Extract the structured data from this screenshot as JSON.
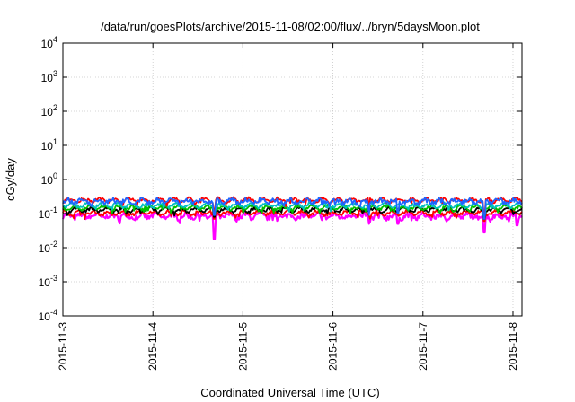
{
  "chart_data": {
    "type": "line",
    "title": "/data/run/goesPlots/archive/2015-11-08/02:00/flux/../bryn/5daysMoon.plot",
    "xlabel": "Coordinated Universal Time (UTC)",
    "ylabel": "cGy/day",
    "yscale": "log",
    "ylim_exponents": [
      -4,
      4
    ],
    "y_tick_labels": [
      {
        "base": "10",
        "exp": "4"
      },
      {
        "base": "10",
        "exp": "3"
      },
      {
        "base": "10",
        "exp": "2"
      },
      {
        "base": "10",
        "exp": "1"
      },
      {
        "base": "10",
        "exp": "0"
      },
      {
        "base": "10",
        "exp": "-1"
      },
      {
        "base": "10",
        "exp": "-2"
      },
      {
        "base": "10",
        "exp": "-3"
      },
      {
        "base": "10",
        "exp": "-4"
      }
    ],
    "xlim_days": [
      0,
      5.1
    ],
    "x_ticks": [
      {
        "day": 0,
        "label": "2015-11-3"
      },
      {
        "day": 1,
        "label": "2015-11-4"
      },
      {
        "day": 2,
        "label": "2015-11-5"
      },
      {
        "day": 3,
        "label": "2015-11-6"
      },
      {
        "day": 4,
        "label": "2015-11-7"
      },
      {
        "day": 5,
        "label": "2015-11-8"
      }
    ],
    "grid": true,
    "series": [
      {
        "color": "#ff00ff",
        "base": 0.085,
        "noise": 0.18,
        "dips": [
          [
            1.68,
            0.018
          ],
          [
            3.4,
            0.05
          ],
          [
            3.72,
            0.05
          ],
          [
            4.68,
            0.028
          ],
          [
            5.05,
            0.045
          ]
        ]
      },
      {
        "color": "#ff0000",
        "base": 0.105,
        "noise": 0.1,
        "dips": [
          [
            1.68,
            0.07
          ],
          [
            4.68,
            0.06
          ]
        ]
      },
      {
        "color": "#000000",
        "base": 0.13,
        "noise": 0.1,
        "dips": [
          [
            1.68,
            0.08
          ],
          [
            4.68,
            0.07
          ]
        ]
      },
      {
        "color": "#00c000",
        "base": 0.15,
        "noise": 0.1,
        "dips": [
          [
            1.68,
            0.09
          ],
          [
            4.68,
            0.08
          ]
        ]
      },
      {
        "color": "#00c0c0",
        "base": 0.175,
        "noise": 0.1,
        "dips": [
          [
            1.68,
            0.1
          ],
          [
            4.68,
            0.09
          ]
        ]
      },
      {
        "color": "#ff0000",
        "base": 0.25,
        "noise": 0.1,
        "dips": [
          [
            1.68,
            0.12
          ],
          [
            3.4,
            0.12
          ],
          [
            4.68,
            0.1
          ]
        ]
      },
      {
        "color": "#1e64ff",
        "base": 0.23,
        "noise": 0.16,
        "dips": [
          [
            1.68,
            0.09
          ],
          [
            3.4,
            0.09
          ],
          [
            3.72,
            0.1
          ],
          [
            4.68,
            0.07
          ]
        ]
      }
    ]
  }
}
